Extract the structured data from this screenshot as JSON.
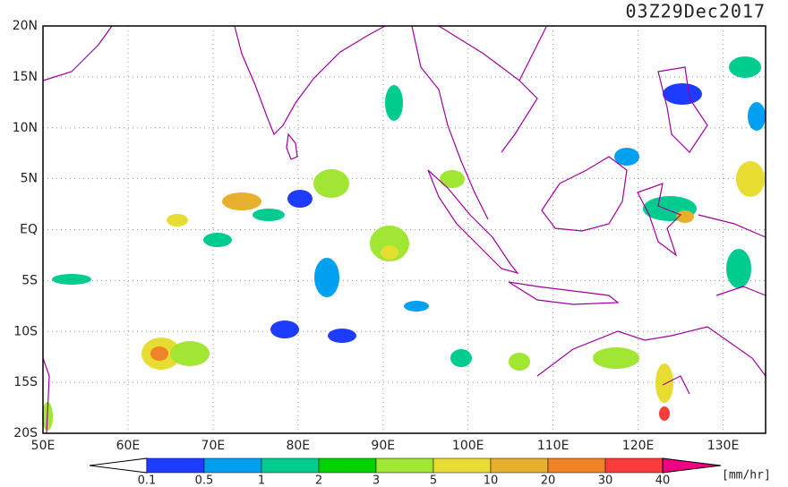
{
  "title": "03Z29Dec2017",
  "map": {
    "lat_labels": [
      "20N",
      "15N",
      "10N",
      "5N",
      "EQ",
      "5S",
      "10S",
      "15S",
      "20S"
    ],
    "lon_labels": [
      "50E",
      "60E",
      "70E",
      "80E",
      "90E",
      "100E",
      "110E",
      "120E",
      "130E"
    ]
  },
  "colorbar": {
    "labels": [
      "0.1",
      "0.5",
      "1",
      "2",
      "3",
      "5",
      "10",
      "20",
      "30",
      "40"
    ],
    "colors": [
      "#1e3cff",
      "#00a0f0",
      "#00cc90",
      "#00d200",
      "#a0e632",
      "#e6dc32",
      "#e6af2d",
      "#f08228",
      "#fa3c3c"
    ],
    "low_color": "#ffffff",
    "high_color": "#f00082",
    "unit": "[mm/hr]"
  }
}
